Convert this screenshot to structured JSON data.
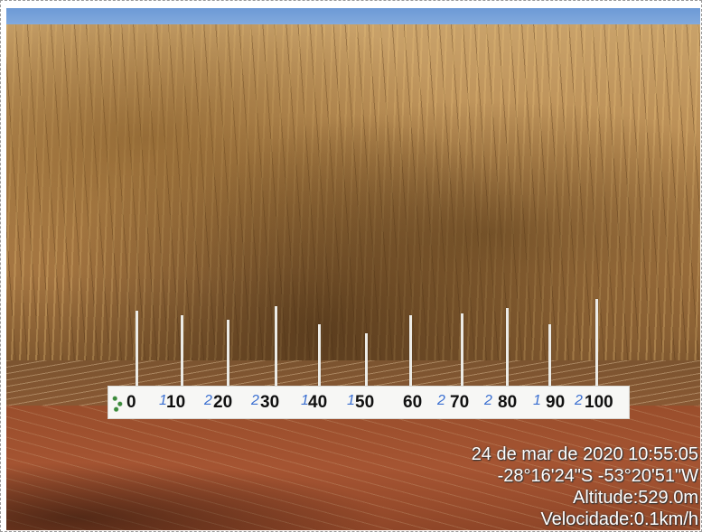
{
  "photo": {
    "subject": "soybean-field",
    "ruler": {
      "ticks": [
        "0",
        "10",
        "20",
        "30",
        "40",
        "50",
        "60",
        "70",
        "80",
        "90",
        "100"
      ],
      "pen_marks": [
        "1",
        "2",
        "2",
        "1",
        "1",
        "2",
        "2",
        "1",
        "2"
      ]
    },
    "stamp": {
      "datetime": "24 de mar de 2020 10:55:05",
      "coordinates": "-28°16'24\"S -53°20'51\"W",
      "altitude": "Altitude:529.0m",
      "speed": "Velocidade:0.1km/h"
    }
  }
}
